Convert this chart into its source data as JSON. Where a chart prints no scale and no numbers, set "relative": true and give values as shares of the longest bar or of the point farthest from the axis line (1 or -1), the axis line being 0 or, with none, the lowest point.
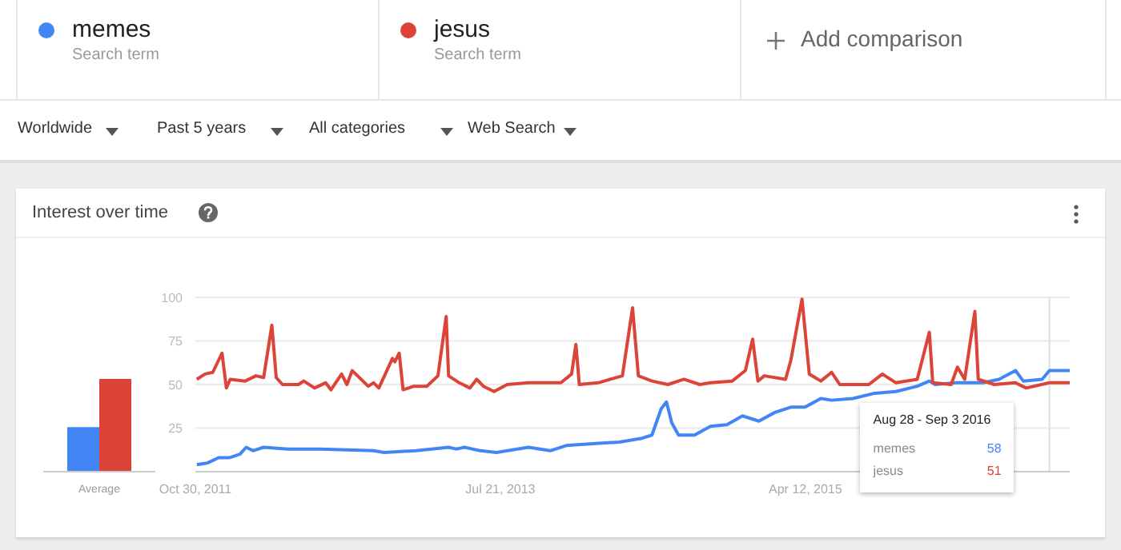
{
  "chart_data": [
    {
      "type": "other",
      "annotations": [
        "Search term",
        "Search term",
        "Add comparison",
        "Worldwide",
        "Past 5 years",
        "All categories",
        "Web Search"
      ]
    },
    {
      "type": "bar",
      "relative": true,
      "categories": [
        "Average"
      ],
      "series": [
        {
          "color": "#4285f4",
          "values": [
            0.48
          ]
        },
        {
          "color": "#db4437",
          "values": [
            1
          ]
        }
      ]
    },
    {
      "type": "line",
      "title": "Interest over time",
      "legend": "top",
      "grid": "y",
      "ylim": [
        0,
        100
      ],
      "yticks": [
        25,
        50,
        75,
        100
      ],
      "xlim": [
        "2011-10-30",
        "2016-10-09"
      ],
      "xticks": [
        {
          "value": "2011-10-30",
          "label": "Oct 30, 2011"
        },
        {
          "value": "2013-07-21",
          "label": "Jul 21, 2013"
        },
        {
          "value": "2015-04-12",
          "label": "Apr 12, 2015"
        }
      ],
      "series": [
        {
          "name": "memes",
          "color": "#4285f4",
          "x": [
            "2011-11-02",
            "2011-11-24",
            "2011-12-17",
            "2012-01-08",
            "2012-01-30",
            "2012-02-12",
            "2012-02-26",
            "2012-03-19",
            "2012-05-08",
            "2012-07-13",
            "2012-11-01",
            "2012-11-23",
            "2013-01-28",
            "2013-04-05",
            "2013-04-21",
            "2013-05-08",
            "2013-06-10",
            "2013-07-13",
            "2013-09-17",
            "2013-11-01",
            "2013-12-04",
            "2014-01-28",
            "2014-03-24",
            "2014-05-07",
            "2014-05-30",
            "2014-06-18",
            "2014-06-29",
            "2014-07-10",
            "2014-07-24",
            "2014-08-26",
            "2014-09-28",
            "2014-11-01",
            "2014-12-03",
            "2015-01-06",
            "2015-02-08",
            "2015-03-13",
            "2015-04-11",
            "2015-05-14",
            "2015-06-05",
            "2015-07-19",
            "2015-09-02",
            "2015-10-16",
            "2015-11-29",
            "2015-12-24",
            "2016-01-05",
            "2016-02-18",
            "2016-04-13",
            "2016-05-16",
            "2016-06-19",
            "2016-07-05",
            "2016-08-13",
            "2016-08-28",
            "2016-10-09"
          ],
          "values": [
            4,
            5,
            8,
            8,
            10,
            14,
            12,
            14,
            13,
            13,
            12,
            11,
            12,
            14,
            13,
            14,
            12,
            11,
            14,
            12,
            15,
            16,
            17,
            19,
            21,
            36,
            40,
            28,
            21,
            21,
            26,
            27,
            32,
            29,
            34,
            37,
            37,
            42,
            41,
            42,
            45,
            46,
            49,
            52,
            50,
            51,
            51,
            53,
            58,
            52,
            53,
            58,
            58
          ]
        },
        {
          "name": "jesus",
          "color": "#db4437",
          "x": [
            "2011-11-02",
            "2011-11-19",
            "2011-12-05",
            "2011-12-24",
            "2012-01-02",
            "2012-01-10",
            "2012-02-10",
            "2012-03-03",
            "2012-03-19",
            "2012-04-05",
            "2012-04-14",
            "2012-04-27",
            "2012-05-30",
            "2012-06-10",
            "2012-07-02",
            "2012-07-25",
            "2012-08-05",
            "2012-08-27",
            "2012-09-07",
            "2012-09-18",
            "2012-10-21",
            "2012-11-01",
            "2012-11-12",
            "2012-12-10",
            "2012-12-15",
            "2012-12-24",
            "2013-01-01",
            "2013-01-23",
            "2013-02-19",
            "2013-03-14",
            "2013-03-31",
            "2013-04-05",
            "2013-04-27",
            "2013-05-19",
            "2013-06-02",
            "2013-06-16",
            "2013-07-08",
            "2013-08-04",
            "2013-09-17",
            "2013-11-23",
            "2013-12-15",
            "2013-12-24",
            "2013-12-31",
            "2014-02-08",
            "2014-03-30",
            "2014-04-20",
            "2014-05-02",
            "2014-05-30",
            "2014-07-02",
            "2014-08-04",
            "2014-09-06",
            "2014-09-28",
            "2014-11-12",
            "2014-12-09",
            "2014-12-24",
            "2015-01-04",
            "2015-01-17",
            "2015-03-02",
            "2015-03-13",
            "2015-04-05",
            "2015-04-20",
            "2015-05-14",
            "2015-06-05",
            "2015-06-22",
            "2015-07-19",
            "2015-08-21",
            "2015-09-18",
            "2015-10-16",
            "2015-11-29",
            "2015-12-24",
            "2015-12-31",
            "2016-02-07",
            "2016-02-20",
            "2016-03-06",
            "2016-03-27",
            "2016-04-03",
            "2016-05-06",
            "2016-06-19",
            "2016-07-11",
            "2016-08-28",
            "2016-10-09"
          ],
          "values": [
            53,
            56,
            57,
            68,
            48,
            53,
            52,
            55,
            54,
            84,
            54,
            50,
            50,
            52,
            48,
            51,
            47,
            56,
            50,
            58,
            49,
            51,
            48,
            65,
            63,
            68,
            47,
            49,
            49,
            55,
            89,
            55,
            51,
            48,
            53,
            49,
            46,
            50,
            51,
            51,
            56,
            73,
            50,
            51,
            55,
            94,
            55,
            52,
            50,
            53,
            50,
            51,
            52,
            58,
            76,
            52,
            55,
            53,
            64,
            99,
            56,
            52,
            57,
            50,
            50,
            50,
            56,
            51,
            53,
            80,
            51,
            50,
            60,
            53,
            92,
            53,
            50,
            51,
            48,
            51,
            51
          ]
        }
      ],
      "ref_lines": [
        {
          "axis": "x",
          "value": "2016-08-28"
        }
      ],
      "annotations": [
        "Aug 28 - Sep 3 2016",
        "memes",
        "58",
        "jesus",
        "51"
      ]
    }
  ]
}
